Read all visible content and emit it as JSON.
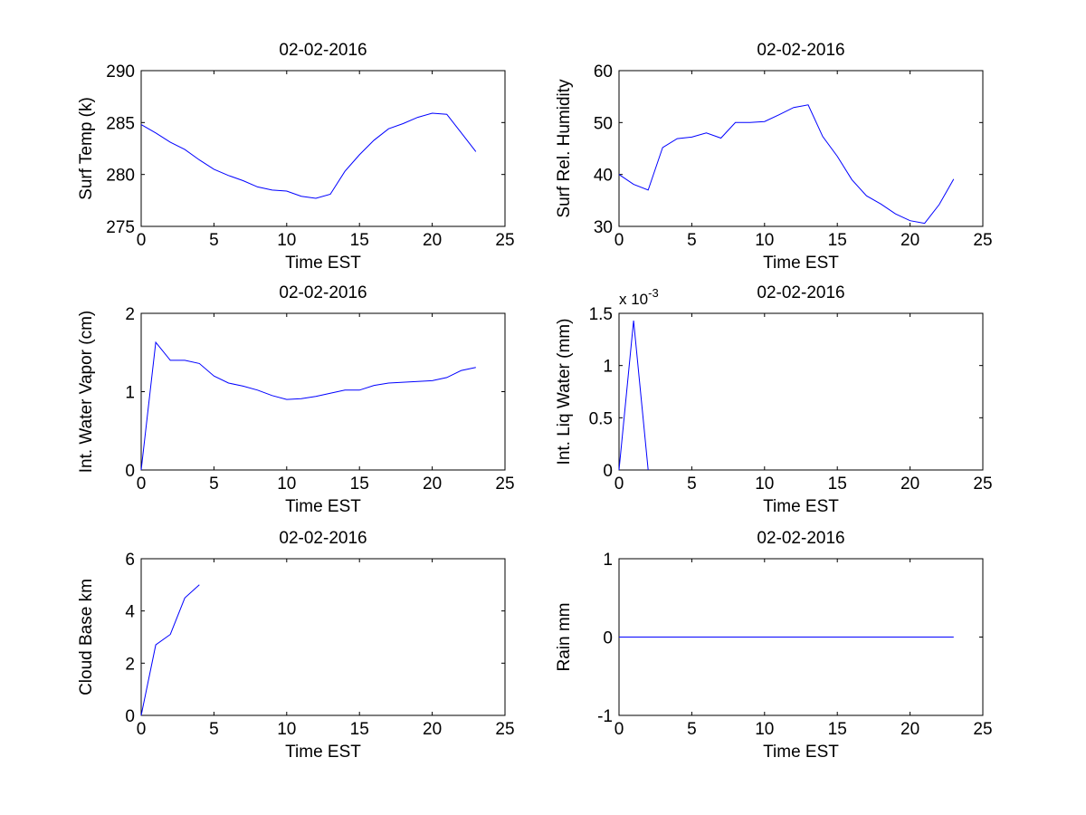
{
  "figure": {
    "background": "#ffffff",
    "line_color": "#0000ff"
  },
  "chart_data": [
    {
      "type": "line",
      "title": "02-02-2016",
      "xlabel": "Time EST",
      "ylabel": "Surf Temp (k)",
      "xlim": [
        0,
        25
      ],
      "ylim": [
        275,
        290
      ],
      "xticks": [
        0,
        5,
        10,
        15,
        20,
        25
      ],
      "yticks": [
        275,
        280,
        285,
        290
      ],
      "xtick_labels": [
        "0",
        "5",
        "10",
        "15",
        "20",
        "25"
      ],
      "ytick_labels": [
        "275",
        "280",
        "285",
        "290"
      ],
      "exponent_label": "",
      "grid": false,
      "x": [
        0,
        1,
        2,
        3,
        4,
        5,
        6,
        7,
        8,
        9,
        10,
        11,
        12,
        13,
        14,
        15,
        16,
        17,
        18,
        19,
        20,
        21,
        22,
        23
      ],
      "series": [
        {
          "values": [
            284.8,
            284.0,
            283.1,
            282.4,
            281.4,
            280.5,
            279.9,
            279.4,
            278.8,
            278.5,
            278.4,
            277.9,
            277.7,
            278.1,
            280.3,
            281.9,
            283.3,
            284.4,
            284.9,
            285.5,
            285.9,
            285.8,
            284.0,
            282.2
          ]
        }
      ]
    },
    {
      "type": "line",
      "title": "02-02-2016",
      "xlabel": "Time EST",
      "ylabel": "Surf Rel. Humidity",
      "xlim": [
        0,
        25
      ],
      "ylim": [
        30,
        60
      ],
      "xticks": [
        0,
        5,
        10,
        15,
        20,
        25
      ],
      "yticks": [
        30,
        40,
        50,
        60
      ],
      "xtick_labels": [
        "0",
        "5",
        "10",
        "15",
        "20",
        "25"
      ],
      "ytick_labels": [
        "30",
        "40",
        "50",
        "60"
      ],
      "exponent_label": "",
      "grid": false,
      "x": [
        0,
        1,
        2,
        3,
        4,
        5,
        6,
        7,
        8,
        9,
        10,
        11,
        12,
        13,
        14,
        15,
        16,
        17,
        18,
        19,
        20,
        21,
        22,
        23
      ],
      "series": [
        {
          "values": [
            40.0,
            38.1,
            37.0,
            45.2,
            46.9,
            47.2,
            48.0,
            47.0,
            50.0,
            50.0,
            50.2,
            51.5,
            52.9,
            53.4,
            47.3,
            43.5,
            39.0,
            35.9,
            34.3,
            32.4,
            31.1,
            30.6,
            34.2,
            39.1
          ]
        }
      ]
    },
    {
      "type": "line",
      "title": "02-02-2016",
      "xlabel": "Time EST",
      "ylabel": "Int. Water Vapor (cm)",
      "xlim": [
        0,
        25
      ],
      "ylim": [
        0,
        2
      ],
      "xticks": [
        0,
        5,
        10,
        15,
        20,
        25
      ],
      "yticks": [
        0,
        1,
        2
      ],
      "xtick_labels": [
        "0",
        "5",
        "10",
        "15",
        "20",
        "25"
      ],
      "ytick_labels": [
        "0",
        "1",
        "2"
      ],
      "exponent_label": "",
      "grid": false,
      "x": [
        0,
        1,
        2,
        3,
        4,
        5,
        6,
        7,
        8,
        9,
        10,
        11,
        12,
        13,
        14,
        15,
        16,
        17,
        18,
        19,
        20,
        21,
        22,
        23
      ],
      "series": [
        {
          "values": [
            0.0,
            1.63,
            1.4,
            1.4,
            1.36,
            1.2,
            1.11,
            1.07,
            1.02,
            0.95,
            0.9,
            0.91,
            0.94,
            0.98,
            1.02,
            1.02,
            1.08,
            1.11,
            1.12,
            1.13,
            1.14,
            1.18,
            1.27,
            1.31
          ]
        }
      ]
    },
    {
      "type": "line",
      "title": "02-02-2016",
      "xlabel": "Time EST",
      "ylabel": "Int. Liq Water (mm)",
      "xlim": [
        0,
        25
      ],
      "ylim": [
        0,
        1.5
      ],
      "xticks": [
        0,
        5,
        10,
        15,
        20,
        25
      ],
      "yticks": [
        0,
        0.5,
        1,
        1.5
      ],
      "xtick_labels": [
        "0",
        "5",
        "10",
        "15",
        "20",
        "25"
      ],
      "ytick_labels": [
        "0",
        "0.5",
        "1",
        "1.5"
      ],
      "exponent_label": "x 10",
      "exponent_power": "-3",
      "grid": false,
      "x": [
        0,
        1,
        2
      ],
      "series": [
        {
          "values": [
            0.0,
            1.43,
            0.0
          ]
        }
      ]
    },
    {
      "type": "line",
      "title": "02-02-2016",
      "xlabel": "Time EST",
      "ylabel": "Cloud Base km",
      "xlim": [
        0,
        25
      ],
      "ylim": [
        0,
        6
      ],
      "xticks": [
        0,
        5,
        10,
        15,
        20,
        25
      ],
      "yticks": [
        0,
        2,
        4,
        6
      ],
      "xtick_labels": [
        "0",
        "5",
        "10",
        "15",
        "20",
        "25"
      ],
      "ytick_labels": [
        "0",
        "2",
        "4",
        "6"
      ],
      "exponent_label": "",
      "grid": false,
      "x": [
        0,
        1,
        2,
        3,
        4
      ],
      "series": [
        {
          "values": [
            0.0,
            2.7,
            3.1,
            4.5,
            5.0
          ]
        }
      ]
    },
    {
      "type": "line",
      "title": "02-02-2016",
      "xlabel": "Time EST",
      "ylabel": "Rain mm",
      "xlim": [
        0,
        25
      ],
      "ylim": [
        -1,
        1
      ],
      "xticks": [
        0,
        5,
        10,
        15,
        20,
        25
      ],
      "yticks": [
        -1,
        0,
        1
      ],
      "xtick_labels": [
        "0",
        "5",
        "10",
        "15",
        "20",
        "25"
      ],
      "ytick_labels": [
        "-1",
        "0",
        "1"
      ],
      "exponent_label": "",
      "grid": false,
      "x": [
        0,
        1,
        2,
        3,
        4,
        5,
        6,
        7,
        8,
        9,
        10,
        11,
        12,
        13,
        14,
        15,
        16,
        17,
        18,
        19,
        20,
        21,
        22,
        23
      ],
      "series": [
        {
          "values": [
            0,
            0,
            0,
            0,
            0,
            0,
            0,
            0,
            0,
            0,
            0,
            0,
            0,
            0,
            0,
            0,
            0,
            0,
            0,
            0,
            0,
            0,
            0,
            0
          ]
        }
      ]
    }
  ]
}
